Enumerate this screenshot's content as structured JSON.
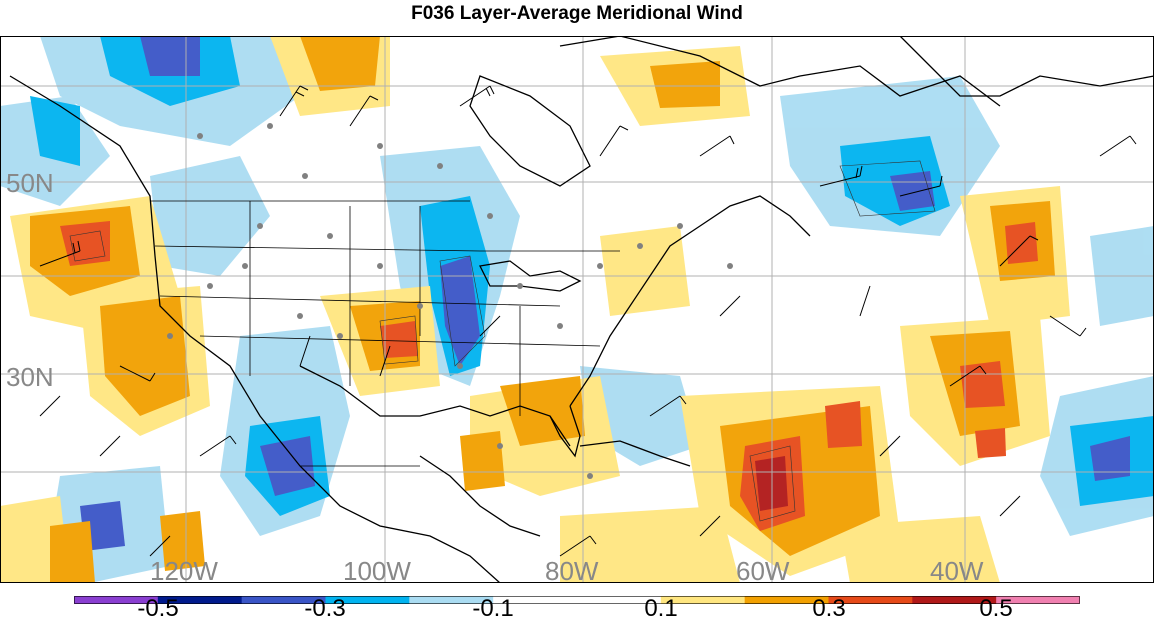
{
  "title": "F036 Layer-Average Meridional Wind",
  "map": {
    "lat_labels": [
      "50N",
      "30N"
    ],
    "lon_labels": [
      "120W",
      "100W",
      "80W",
      "60W",
      "40W"
    ],
    "label_color": "#888888",
    "coast_color": "#000000",
    "station_color": "#808080"
  },
  "colorbar": {
    "colors": [
      "#8a3fd1",
      "#001a8c",
      "#3a55c7",
      "#00b3f0",
      "#aadcf2",
      "#ffffff",
      "#ffffff",
      "#ffe680",
      "#f2a000",
      "#e64a19",
      "#b01818",
      "#f080b0"
    ],
    "tick_labels": [
      "-0.5",
      "-0.3",
      "-0.1",
      "0.1",
      "0.3",
      "0.5"
    ]
  }
}
